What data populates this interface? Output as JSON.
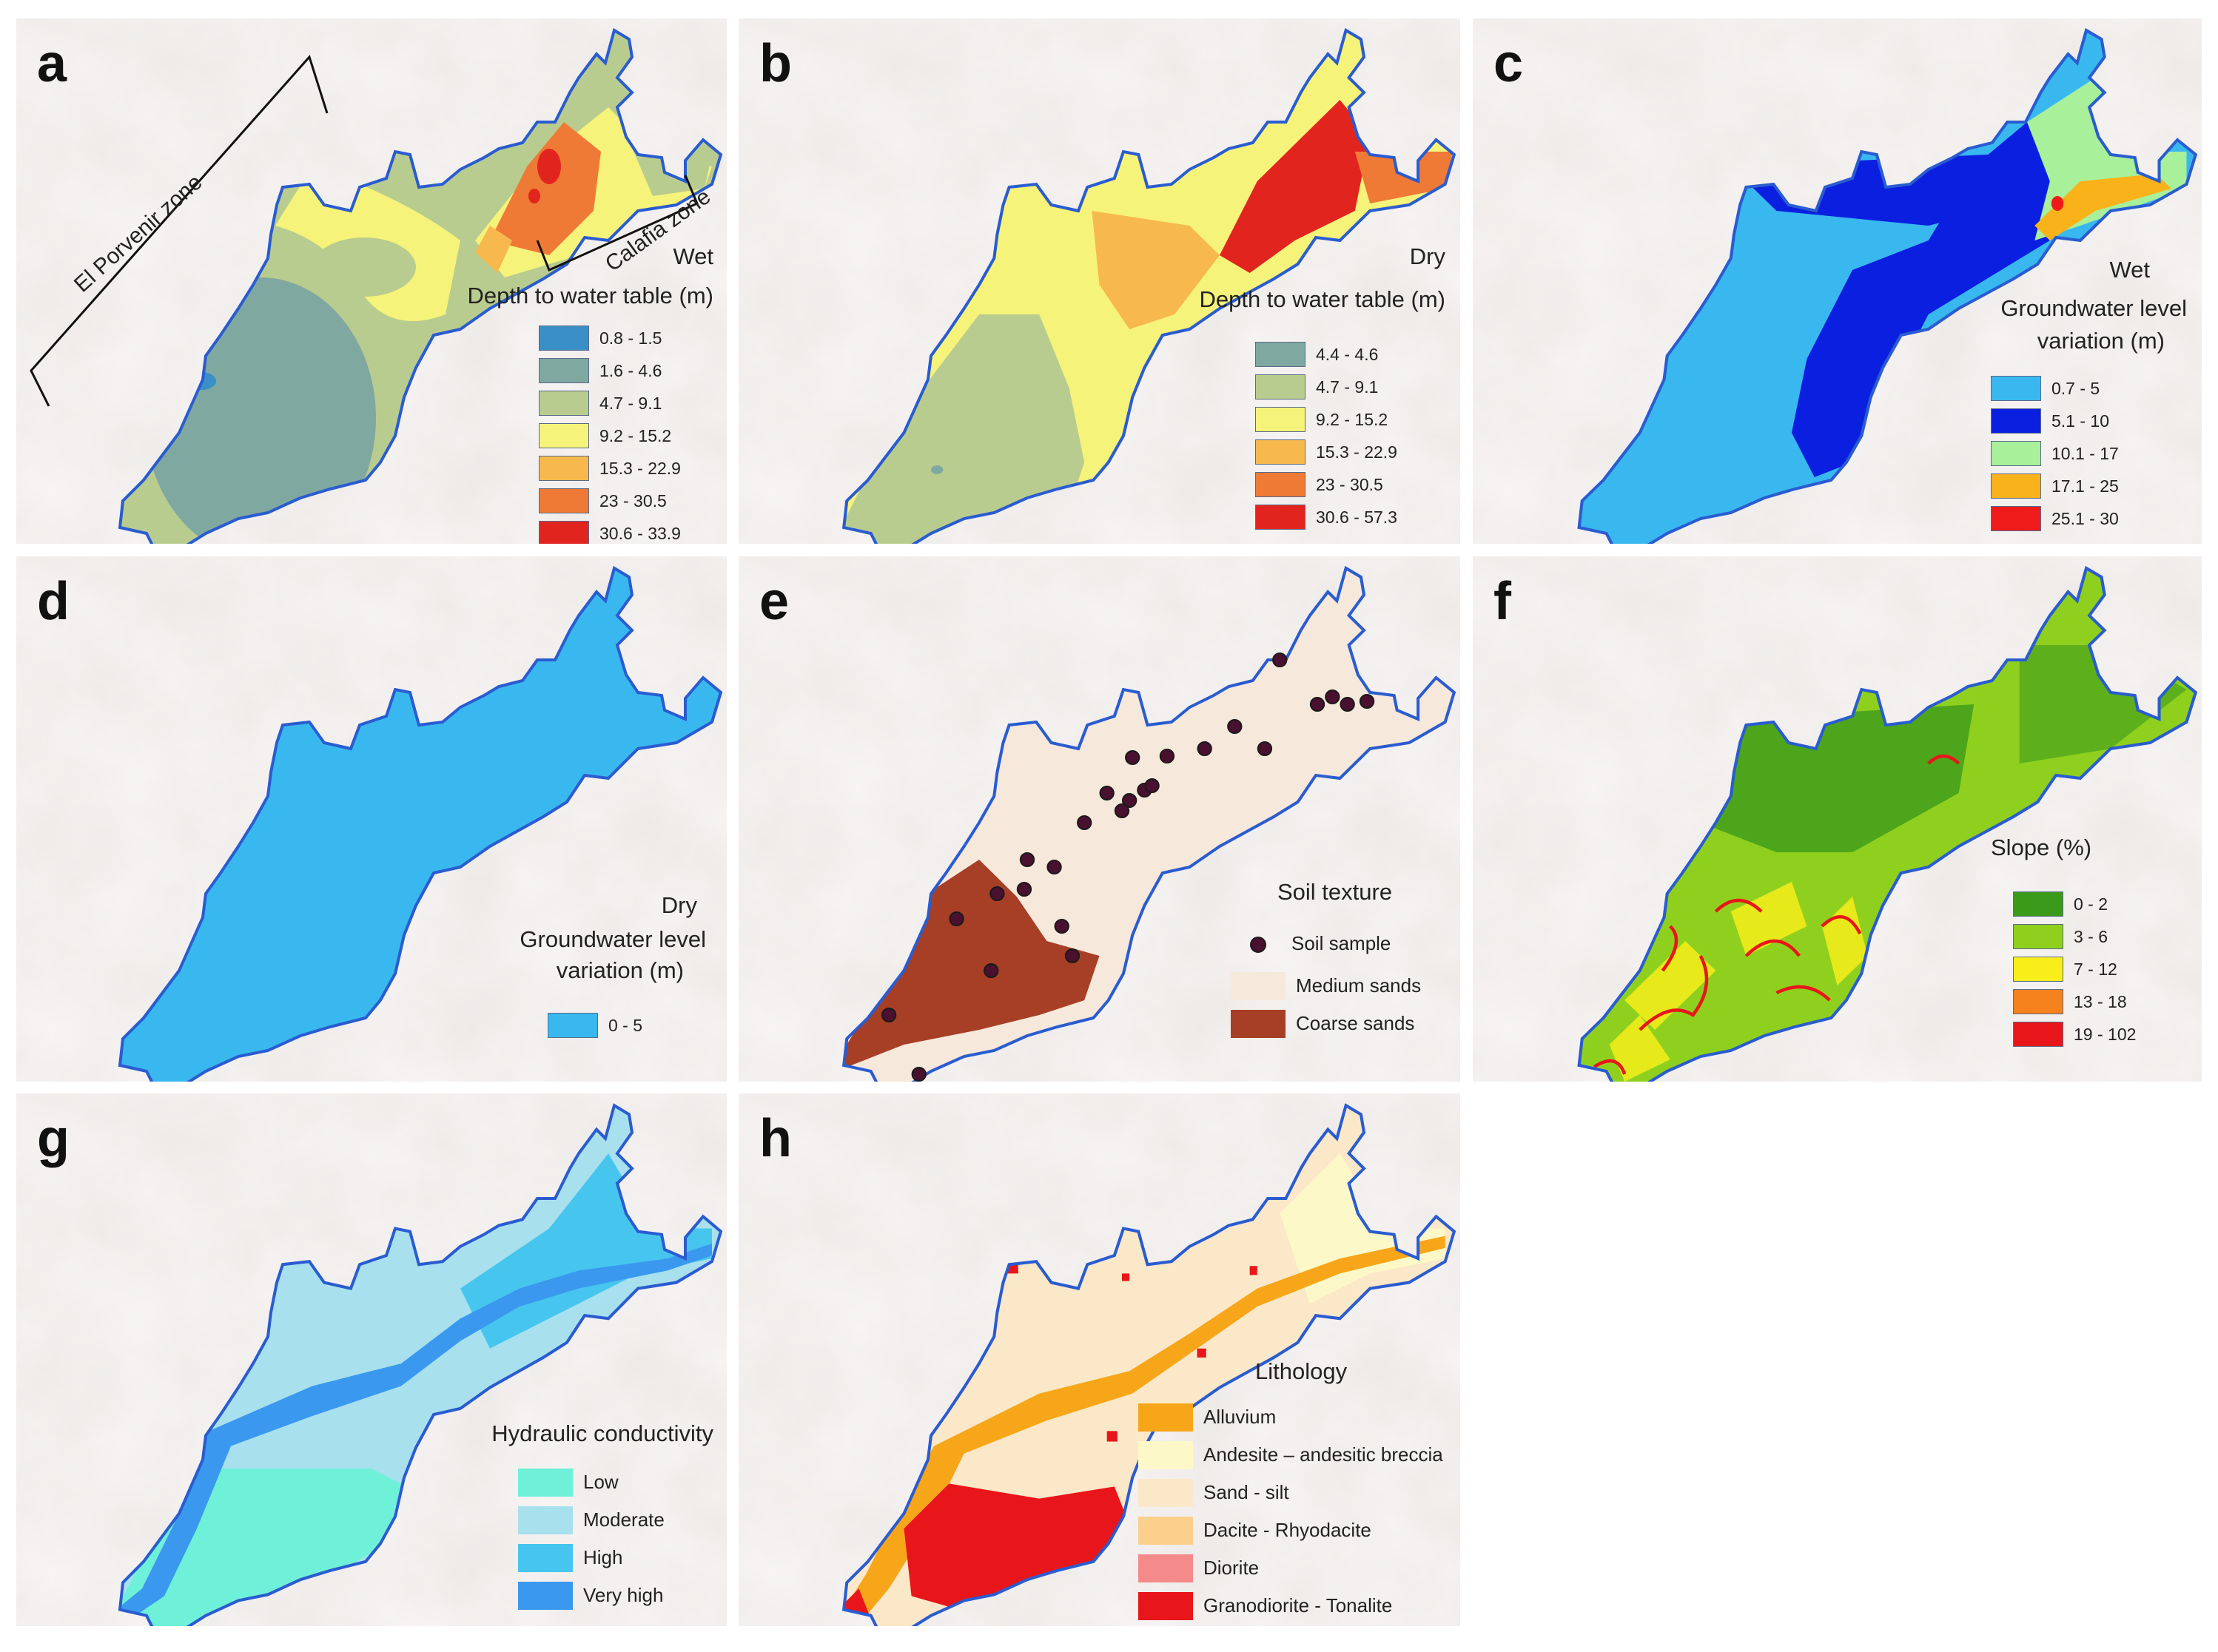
{
  "panels": {
    "a": {
      "label": "a",
      "season": "Wet",
      "title": "Depth to water table (m)",
      "zones": {
        "porvenir": "El Porvenir  zone",
        "calafia": "Calafia zone"
      },
      "legend": [
        {
          "label": "0.8 - 1.5",
          "color": "#3a8fc6"
        },
        {
          "label": "1.6 - 4.6",
          "color": "#7fa8a0"
        },
        {
          "label": "4.7 - 9.1",
          "color": "#b9cc8f"
        },
        {
          "label": "9.2 - 15.2",
          "color": "#f6f37a"
        },
        {
          "label": "15.3 - 22.9",
          "color": "#f7b94e"
        },
        {
          "label": "23 - 30.5",
          "color": "#ef7a36"
        },
        {
          "label": "30.6 - 33.9",
          "color": "#e2241f"
        }
      ]
    },
    "b": {
      "label": "b",
      "season": "Dry",
      "title": "Depth to water table (m)",
      "legend": [
        {
          "label": "4.4 - 4.6",
          "color": "#7fa8a0"
        },
        {
          "label": "4.7 - 9.1",
          "color": "#b9cc8f"
        },
        {
          "label": "9.2 - 15.2",
          "color": "#f6f37a"
        },
        {
          "label": "15.3 - 22.9",
          "color": "#f7b94e"
        },
        {
          "label": "23 - 30.5",
          "color": "#ef7a36"
        },
        {
          "label": "30.6 - 57.3",
          "color": "#e2241f"
        }
      ]
    },
    "c": {
      "label": "c",
      "season": "Wet",
      "title_line1": "Groundwater level",
      "title_line2": "variation (m)",
      "legend": [
        {
          "label": "0.7 - 5",
          "color": "#39b8f0"
        },
        {
          "label": "5.1 - 10",
          "color": "#0a1fe0"
        },
        {
          "label": "10.1 - 17",
          "color": "#a8f09a"
        },
        {
          "label": "17.1 - 25",
          "color": "#f9b21a"
        },
        {
          "label": "25.1 - 30",
          "color": "#ef1a1a"
        }
      ]
    },
    "d": {
      "label": "d",
      "season": "Dry",
      "title_line1": "Groundwater level",
      "title_line2": "variation (m)",
      "legend": [
        {
          "label": "0 - 5",
          "color": "#39b8f0"
        }
      ]
    },
    "e": {
      "label": "e",
      "title": "Soil texture",
      "legend": [
        {
          "label": "Soil sample",
          "color": "#4a1030"
        },
        {
          "label": "Medium sands",
          "color": "#f7e8dc"
        },
        {
          "label": "Coarse sands",
          "color": "#a63f25"
        }
      ]
    },
    "f": {
      "label": "f",
      "title": "Slope (%)",
      "legend": [
        {
          "label": "0 - 2",
          "color": "#3c9a1a"
        },
        {
          "label": "3 - 6",
          "color": "#8fd01e"
        },
        {
          "label": "7 - 12",
          "color": "#f7ee1a"
        },
        {
          "label": "13 - 18",
          "color": "#f5821c"
        },
        {
          "label": "19 - 102",
          "color": "#e8161a"
        }
      ]
    },
    "g": {
      "label": "g",
      "title": "Hydraulic conductivity",
      "legend": [
        {
          "label": "Low",
          "color": "#6ff0d8"
        },
        {
          "label": "Moderate",
          "color": "#a8e0ee"
        },
        {
          "label": "High",
          "color": "#46c6ee"
        },
        {
          "label": "Very high",
          "color": "#3a98ee"
        }
      ]
    },
    "h": {
      "label": "h",
      "title": "Lithology",
      "legend": [
        {
          "label": "Alluvium",
          "color": "#f7a61a"
        },
        {
          "label": "Andesite – andesitic breccia",
          "color": "#fdf8c8"
        },
        {
          "label": "Sand - silt",
          "color": "#fbe8c8"
        },
        {
          "label": "Dacite - Rhyodacite",
          "color": "#fbcf8c"
        },
        {
          "label": "Diorite",
          "color": "#f58a8a"
        },
        {
          "label": "Granodiorite - Tonalite",
          "color": "#e8161a"
        }
      ]
    }
  }
}
